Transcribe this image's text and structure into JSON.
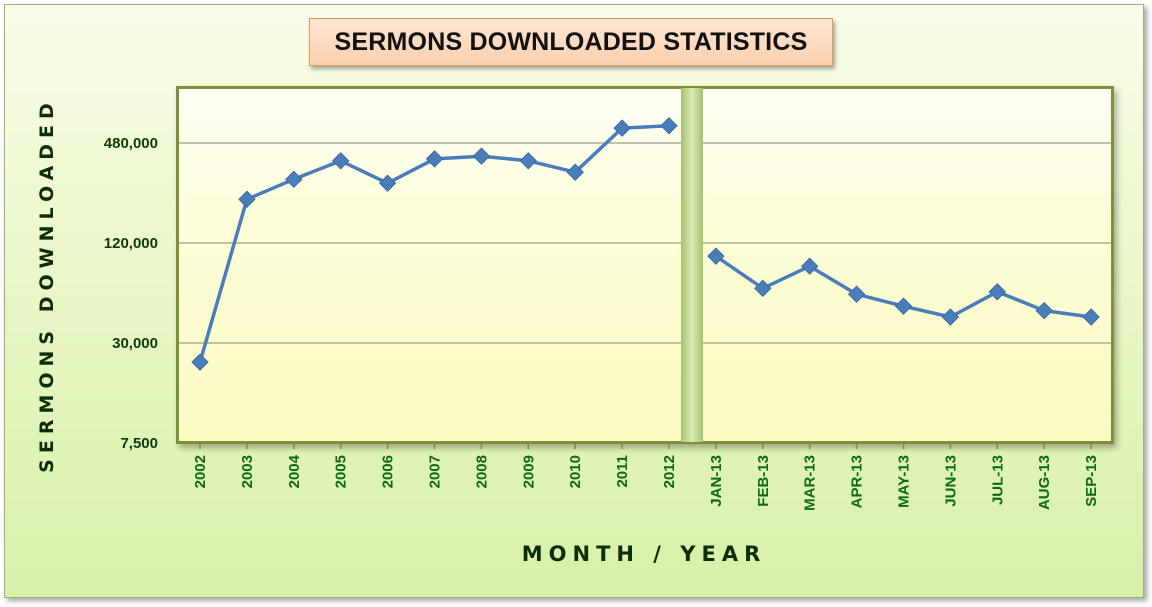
{
  "chart_data": {
    "type": "line",
    "title": "SERMONS DOWNLOADED STATISTICS",
    "xlabel": "MONTH / YEAR",
    "ylabel": "SERMONS DOWNLOADED",
    "yscale": "log",
    "ylim": [
      7500,
      960000
    ],
    "yticks": [
      7500,
      30000,
      120000,
      480000
    ],
    "ytick_labels": [
      "7,500",
      "30,000",
      "120,000",
      "480,000"
    ],
    "grid": true,
    "legend": "none",
    "series_color": "#4a7ebb",
    "marker": "diamond",
    "segments": [
      {
        "categories": [
          "2002",
          "2003",
          "2004",
          "2005",
          "2006",
          "2007",
          "2008",
          "2009",
          "2010",
          "2011",
          "2012"
        ],
        "values": [
          23000,
          220000,
          290000,
          375000,
          275000,
          385000,
          400000,
          375000,
          320000,
          590000,
          610000
        ]
      },
      {
        "categories": [
          "JAN-13",
          "FEB-13",
          "MAR-13",
          "APR-13",
          "MAY-13",
          "JUN-13",
          "JUL-13",
          "AUG-13",
          "SEP-13"
        ],
        "values": [
          100000,
          64000,
          87000,
          59000,
          50000,
          43000,
          61000,
          47000,
          43000
        ]
      }
    ]
  },
  "colors": {
    "line": "#4a7ebb",
    "panel_border": "#7f8f3a",
    "title_box": "#fbd0ad",
    "tick_text": "#0c6a12"
  }
}
